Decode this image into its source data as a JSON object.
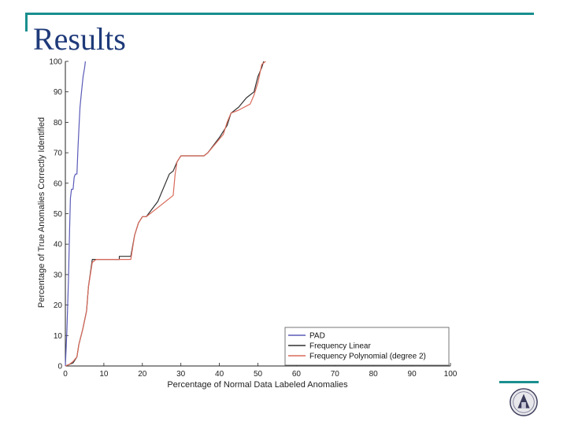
{
  "slide": {
    "title": "Results"
  },
  "colors": {
    "frame": "#1a8e8e",
    "title": "#1f3a7a",
    "pad": "#5a5ab8",
    "linear": "#303030",
    "poly": "#d96a5a"
  },
  "logo": {
    "icon": "university-seal-icon"
  },
  "chart_data": {
    "type": "line",
    "title": "",
    "xlabel": "Percentage of Normal Data Labeled Anomalies",
    "ylabel": "Percentage of True Anomalies Correctly Identified",
    "xlim": [
      0,
      100
    ],
    "ylim": [
      0,
      100
    ],
    "xticks": [
      "0",
      "10",
      "20",
      "30",
      "40",
      "50",
      "60",
      "70",
      "80",
      "90",
      "100"
    ],
    "yticks": [
      "0",
      "10",
      "20",
      "30",
      "40",
      "50",
      "60",
      "70",
      "80",
      "90",
      "100"
    ],
    "grid": false,
    "legend": "bottom-right",
    "series": [
      {
        "name": "PAD",
        "color": "#5a5ab8",
        "x": [
          0,
          0.4,
          0.8,
          1.1,
          1.3,
          1.6,
          2.0,
          2.3,
          2.6,
          3.0,
          3.3,
          3.6,
          3.8,
          4.2,
          4.6,
          5.0,
          5.2
        ],
        "y": [
          0,
          12,
          28,
          45,
          55,
          58,
          58,
          62,
          63,
          63,
          72,
          80,
          85,
          90,
          95,
          98,
          100
        ]
      },
      {
        "name": "Frequency Linear",
        "color": "#303030",
        "x": [
          0,
          1,
          2,
          3,
          3.5,
          4.5,
          5.5,
          6,
          7,
          8,
          10,
          14,
          14,
          17,
          18,
          19,
          20,
          21,
          24,
          27,
          28,
          29,
          30,
          31,
          36,
          37,
          40,
          42,
          43,
          45,
          47,
          49,
          50,
          51,
          51.5
        ],
        "y": [
          0,
          0.5,
          1,
          3,
          7,
          12,
          18,
          26,
          35,
          35,
          35,
          35,
          36,
          36,
          43,
          47,
          49,
          49,
          54,
          63,
          64,
          67,
          69,
          69,
          69,
          70,
          75,
          79,
          83,
          85,
          88,
          90,
          95,
          98,
          100
        ],
        "note_visible": false
      },
      {
        "name": "Frequency Polynomial (degree 2)",
        "color": "#d96a5a",
        "x": [
          0,
          1,
          2,
          3,
          3.5,
          4.5,
          5.5,
          6,
          7,
          8,
          10,
          14,
          17,
          18,
          19,
          20,
          21,
          24,
          28,
          28.5,
          29,
          30,
          31,
          36,
          37,
          41,
          42,
          43,
          45,
          48,
          49,
          50,
          51,
          52
        ],
        "y": [
          0,
          0.5,
          1.5,
          3,
          7,
          12,
          18,
          26,
          34,
          35,
          35,
          35,
          35,
          43,
          47,
          49,
          49,
          52,
          56,
          63,
          67,
          69,
          69,
          69,
          70,
          76,
          80,
          83,
          84,
          86,
          89,
          93,
          99,
          100
        ]
      }
    ]
  }
}
